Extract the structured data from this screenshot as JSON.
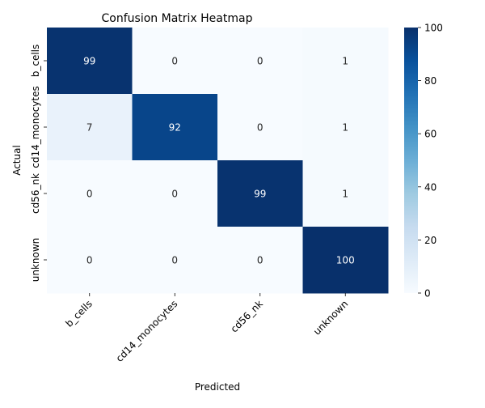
{
  "chart_data": {
    "type": "heatmap",
    "title": "Confusion Matrix Heatmap",
    "xlabel": "Predicted",
    "ylabel": "Actual",
    "x_categories": [
      "b_cells",
      "cd14_monocytes",
      "cd56_nk",
      "unknown"
    ],
    "y_categories": [
      "b_cells",
      "cd14_monocytes",
      "cd56_nk",
      "unknown"
    ],
    "values": [
      [
        99,
        0,
        0,
        1
      ],
      [
        7,
        92,
        0,
        1
      ],
      [
        0,
        0,
        99,
        1
      ],
      [
        0,
        0,
        0,
        100
      ]
    ],
    "colorbar": {
      "min": 0,
      "max": 100,
      "ticks": [
        0,
        20,
        40,
        60,
        80,
        100
      ]
    },
    "colormap": "Blues",
    "colors": {
      "low": "#f7fbff",
      "high": "#08306b"
    },
    "grid": false,
    "legend": "colorbar-right"
  }
}
